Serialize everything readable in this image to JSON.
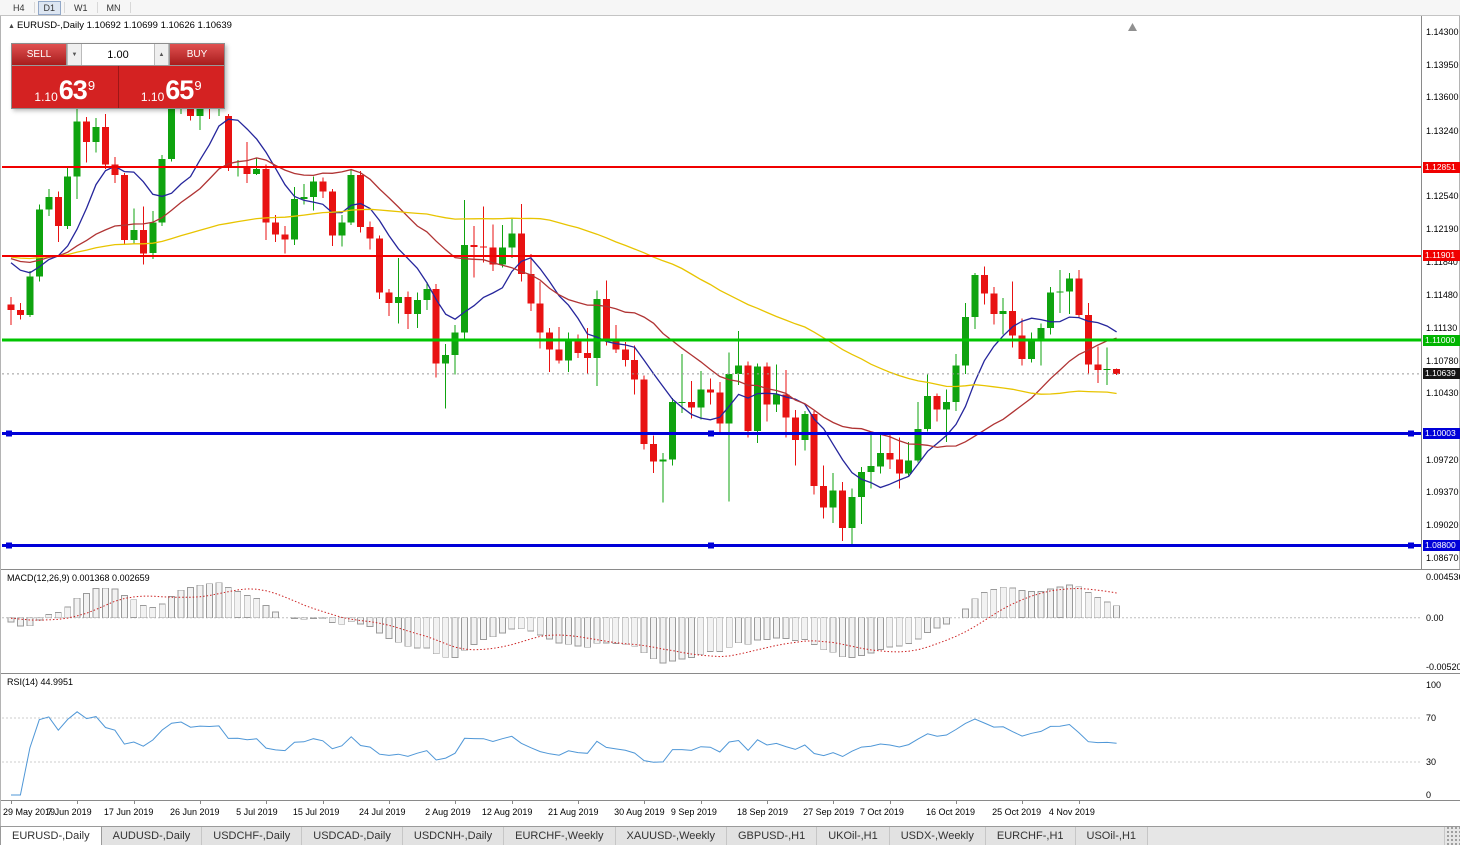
{
  "toolbar": {
    "timeframes": [
      {
        "label": "H4",
        "active": false
      },
      {
        "label": "D1",
        "active": true
      },
      {
        "label": "W1",
        "active": false
      },
      {
        "label": "MN",
        "active": false
      }
    ]
  },
  "chart_header": {
    "text": "EURUSD-,Daily  1.10692 1.10699 1.10626 1.10639"
  },
  "icons": {
    "spin_down": "▼",
    "spin_up": "▲",
    "symbol_marker": "▲"
  },
  "trade_panel": {
    "sell_label": "SELL",
    "buy_label": "BUY",
    "volume": "1.00",
    "bid_prefix": "1.10",
    "bid_big": "63",
    "bid_sup": "9",
    "ask_prefix": "1.10",
    "ask_big": "65",
    "ask_sup": "9"
  },
  "colors": {
    "up": "#0fa30f",
    "down": "#e81212",
    "line_red": "#f00000",
    "line_green": "#00c400",
    "line_blue": "#0000d8",
    "current_badge": "#151515",
    "macd_signal": "#cc2222",
    "macd_hist_stroke": "#9a9a9a",
    "macd_hist_fill": "#f2f2f2",
    "rsi_line": "#4f97d7"
  },
  "chart_data": {
    "type": "candlestick",
    "symbol": "EURUSD-,Daily",
    "current_price": 1.10639,
    "current_bar": {
      "open": 1.10692,
      "high": 1.10699,
      "low": 1.10626,
      "close": 1.10639
    },
    "candles": [
      [
        1.1138,
        1.1146,
        1.1116,
        1.1132
      ],
      [
        1.1132,
        1.114,
        1.1122,
        1.1127
      ],
      [
        1.1127,
        1.1174,
        1.1125,
        1.1168
      ],
      [
        1.1168,
        1.1245,
        1.1163,
        1.124
      ],
      [
        1.124,
        1.1262,
        1.1233,
        1.1253
      ],
      [
        1.1253,
        1.1259,
        1.1205,
        1.1222
      ],
      [
        1.1222,
        1.1286,
        1.1219,
        1.1275
      ],
      [
        1.1275,
        1.1348,
        1.1251,
        1.1334
      ],
      [
        1.1334,
        1.1339,
        1.129,
        1.1312
      ],
      [
        1.1312,
        1.1338,
        1.1301,
        1.1328
      ],
      [
        1.1328,
        1.1342,
        1.1283,
        1.1288
      ],
      [
        1.1288,
        1.1296,
        1.1268,
        1.1277
      ],
      [
        1.1277,
        1.1279,
        1.1202,
        1.1207
      ],
      [
        1.1207,
        1.1241,
        1.1203,
        1.1218
      ],
      [
        1.1218,
        1.1243,
        1.1181,
        1.1193
      ],
      [
        1.1193,
        1.1238,
        1.1187,
        1.1226
      ],
      [
        1.1226,
        1.1298,
        1.1222,
        1.1294
      ],
      [
        1.1294,
        1.1368,
        1.1291,
        1.1355
      ],
      [
        1.1355,
        1.1372,
        1.1342,
        1.1368
      ],
      [
        1.1368,
        1.1371,
        1.1335,
        1.134
      ],
      [
        1.134,
        1.1362,
        1.1325,
        1.135
      ],
      [
        1.135,
        1.136,
        1.1337,
        1.1348
      ],
      [
        1.1348,
        1.1365,
        1.134,
        1.1352
      ],
      [
        1.134,
        1.1342,
        1.1281,
        1.1285
      ],
      [
        1.1285,
        1.1293,
        1.1275,
        1.1286
      ],
      [
        1.1286,
        1.1312,
        1.1268,
        1.1278
      ],
      [
        1.1278,
        1.1295,
        1.1277,
        1.1283
      ],
      [
        1.1283,
        1.1288,
        1.1207,
        1.1226
      ],
      [
        1.1226,
        1.1234,
        1.1205,
        1.1213
      ],
      [
        1.1213,
        1.1222,
        1.1193,
        1.1208
      ],
      [
        1.1208,
        1.1264,
        1.1202,
        1.1251
      ],
      [
        1.1251,
        1.1267,
        1.1245,
        1.1253
      ],
      [
        1.1253,
        1.1275,
        1.1239,
        1.127
      ],
      [
        1.127,
        1.1274,
        1.1252,
        1.1259
      ],
      [
        1.1259,
        1.1262,
        1.1201,
        1.1212
      ],
      [
        1.1212,
        1.1234,
        1.12,
        1.1226
      ],
      [
        1.1226,
        1.1282,
        1.1223,
        1.1277
      ],
      [
        1.1277,
        1.1281,
        1.1215,
        1.1221
      ],
      [
        1.1221,
        1.1227,
        1.1197,
        1.1209
      ],
      [
        1.1209,
        1.1212,
        1.1144,
        1.1151
      ],
      [
        1.1151,
        1.1155,
        1.1126,
        1.114
      ],
      [
        1.114,
        1.1188,
        1.1118,
        1.1146
      ],
      [
        1.1146,
        1.1152,
        1.1112,
        1.1128
      ],
      [
        1.1128,
        1.1151,
        1.1113,
        1.1143
      ],
      [
        1.1143,
        1.1162,
        1.1132,
        1.1155
      ],
      [
        1.1155,
        1.116,
        1.106,
        1.1075
      ],
      [
        1.1075,
        1.1096,
        1.1027,
        1.1084
      ],
      [
        1.1084,
        1.1116,
        1.1063,
        1.1108
      ],
      [
        1.1108,
        1.125,
        1.1101,
        1.1202
      ],
      [
        1.1202,
        1.1222,
        1.1167,
        1.12
      ],
      [
        1.12,
        1.1243,
        1.1183,
        1.1199
      ],
      [
        1.1199,
        1.1224,
        1.1174,
        1.1181
      ],
      [
        1.1181,
        1.1223,
        1.1178,
        1.1199
      ],
      [
        1.1199,
        1.123,
        1.1188,
        1.1214
      ],
      [
        1.1214,
        1.1246,
        1.1163,
        1.1171
      ],
      [
        1.1171,
        1.1192,
        1.1131,
        1.1139
      ],
      [
        1.1139,
        1.1163,
        1.1091,
        1.1108
      ],
      [
        1.1108,
        1.1113,
        1.1066,
        1.109
      ],
      [
        1.109,
        1.1114,
        1.1075,
        1.1078
      ],
      [
        1.1078,
        1.1108,
        1.1066,
        1.11
      ],
      [
        1.11,
        1.1106,
        1.1081,
        1.1086
      ],
      [
        1.1086,
        1.1113,
        1.1064,
        1.1081
      ],
      [
        1.1081,
        1.1153,
        1.1051,
        1.1144
      ],
      [
        1.1144,
        1.1164,
        1.1094,
        1.1101
      ],
      [
        1.1101,
        1.1116,
        1.1086,
        1.109
      ],
      [
        1.109,
        1.1098,
        1.1072,
        1.1079
      ],
      [
        1.1079,
        1.1094,
        1.1042,
        1.1058
      ],
      [
        1.1058,
        1.1062,
        1.0983,
        1.0989
      ],
      [
        1.0989,
        1.0998,
        1.0958,
        1.097
      ],
      [
        1.097,
        1.0979,
        1.0926,
        1.0972
      ],
      [
        1.0972,
        1.1038,
        1.0966,
        1.1034
      ],
      [
        1.1034,
        1.1085,
        1.1022,
        1.1034
      ],
      [
        1.1034,
        1.1056,
        1.1016,
        1.1028
      ],
      [
        1.1028,
        1.1067,
        1.1015,
        1.1047
      ],
      [
        1.1047,
        1.1059,
        1.1031,
        1.1044
      ],
      [
        1.1044,
        1.1055,
        1.0999,
        1.1011
      ],
      [
        1.1011,
        1.1087,
        1.0927,
        1.1064
      ],
      [
        1.1064,
        1.111,
        1.1052,
        1.1073
      ],
      [
        1.1073,
        1.1077,
        1.0996,
        1.1003
      ],
      [
        1.1003,
        1.1075,
        1.099,
        1.1072
      ],
      [
        1.1072,
        1.1076,
        1.1013,
        1.1031
      ],
      [
        1.1031,
        1.1074,
        1.1023,
        1.1042
      ],
      [
        1.1042,
        1.1068,
        1.0996,
        1.1017
      ],
      [
        1.1017,
        1.1025,
        1.0966,
        1.0993
      ],
      [
        1.0993,
        1.1024,
        1.0982,
        1.1021
      ],
      [
        1.1021,
        1.1024,
        1.0935,
        1.0944
      ],
      [
        1.0944,
        1.0966,
        1.0909,
        1.0921
      ],
      [
        1.0921,
        1.0958,
        1.0904,
        1.0939
      ],
      [
        1.0939,
        1.0948,
        1.0885,
        1.0899
      ],
      [
        1.0899,
        1.0941,
        1.0879,
        1.0932
      ],
      [
        1.0932,
        1.0964,
        1.0903,
        1.0959
      ],
      [
        1.0959,
        1.0999,
        1.0941,
        1.0965
      ],
      [
        1.0965,
        1.0999,
        1.0957,
        1.0979
      ],
      [
        1.0979,
        1.1,
        1.0962,
        1.0972
      ],
      [
        1.0972,
        1.0996,
        1.0941,
        1.0957
      ],
      [
        1.0957,
        1.0991,
        1.0955,
        1.0971
      ],
      [
        1.0971,
        1.1034,
        1.0969,
        1.1005
      ],
      [
        1.1005,
        1.1063,
        1.1002,
        1.104
      ],
      [
        1.104,
        1.1043,
        1.1013,
        1.1026
      ],
      [
        1.1026,
        1.1047,
        1.0991,
        1.1034
      ],
      [
        1.1034,
        1.1085,
        1.1024,
        1.1073
      ],
      [
        1.1073,
        1.114,
        1.1064,
        1.1125
      ],
      [
        1.1125,
        1.1172,
        1.1112,
        1.117
      ],
      [
        1.117,
        1.1179,
        1.1138,
        1.115
      ],
      [
        1.115,
        1.1157,
        1.1117,
        1.1128
      ],
      [
        1.1128,
        1.1145,
        1.1106,
        1.1131
      ],
      [
        1.1131,
        1.1163,
        1.1092,
        1.1105
      ],
      [
        1.1105,
        1.1123,
        1.1073,
        1.108
      ],
      [
        1.108,
        1.1108,
        1.1076,
        1.1099
      ],
      [
        1.1099,
        1.1118,
        1.1073,
        1.1113
      ],
      [
        1.1113,
        1.1157,
        1.1106,
        1.1151
      ],
      [
        1.1151,
        1.1175,
        1.1129,
        1.1152
      ],
      [
        1.1152,
        1.1172,
        1.1128,
        1.1166
      ],
      [
        1.1166,
        1.1175,
        1.1124,
        1.1127
      ],
      [
        1.1127,
        1.114,
        1.1063,
        1.1074
      ],
      [
        1.1074,
        1.1093,
        1.1054,
        1.1068
      ],
      [
        1.1068,
        1.1092,
        1.1052,
        1.1069
      ],
      [
        1.10692,
        1.10699,
        1.10626,
        1.10639
      ]
    ],
    "x_labels": [
      {
        "i": 0,
        "t": "29 May 2019"
      },
      {
        "i": 7,
        "t": "7 Jun 2019"
      },
      {
        "i": 13,
        "t": "17 Jun 2019"
      },
      {
        "i": 20,
        "t": "26 Jun 2019"
      },
      {
        "i": 27,
        "t": "5 Jul 2019"
      },
      {
        "i": 33,
        "t": "15 Jul 2019"
      },
      {
        "i": 40,
        "t": "24 Jul 2019"
      },
      {
        "i": 47,
        "t": "2 Aug 2019"
      },
      {
        "i": 53,
        "t": "12 Aug 2019"
      },
      {
        "i": 60,
        "t": "21 Aug 2019"
      },
      {
        "i": 67,
        "t": "30 Aug 2019"
      },
      {
        "i": 73,
        "t": "9 Sep 2019"
      },
      {
        "i": 80,
        "t": "18 Sep 2019"
      },
      {
        "i": 87,
        "t": "27 Sep 2019"
      },
      {
        "i": 93,
        "t": "7 Oct 2019"
      },
      {
        "i": 100,
        "t": "16 Oct 2019"
      },
      {
        "i": 107,
        "t": "25 Oct 2019"
      },
      {
        "i": 113,
        "t": "4 Nov 2019"
      }
    ],
    "y_ticks": [
      {
        "t": "1.14300",
        "p": 1.143
      },
      {
        "t": "1.13950",
        "p": 1.1395
      },
      {
        "t": "1.13600",
        "p": 1.136
      },
      {
        "t": "1.13240",
        "p": 1.1324
      },
      {
        "t": "1.12540",
        "p": 1.1254
      },
      {
        "t": "1.12190",
        "p": 1.1219
      },
      {
        "t": "1.11840",
        "p": 1.1184
      },
      {
        "t": "1.11480",
        "p": 1.1148
      },
      {
        "t": "1.11130",
        "p": 1.1113
      },
      {
        "t": "1.10780",
        "p": 1.1078
      },
      {
        "t": "1.10430",
        "p": 1.1043
      },
      {
        "t": "1.09720",
        "p": 1.0972
      },
      {
        "t": "1.09370",
        "p": 1.0937
      },
      {
        "t": "1.09020",
        "p": 1.0902
      },
      {
        "t": "1.08670",
        "p": 1.0867
      }
    ],
    "price_badges": [
      {
        "t": "1.12851",
        "p": 1.12851,
        "bg": "#f00000"
      },
      {
        "t": "1.11901",
        "p": 1.11901,
        "bg": "#f00000"
      },
      {
        "t": "1.11000",
        "p": 1.11,
        "bg": "#00b400"
      },
      {
        "t": "1.10639",
        "p": 1.10639,
        "bg": "#151515"
      },
      {
        "t": "1.10003",
        "p": 1.10003,
        "bg": "#0000d8"
      },
      {
        "t": "1.08800",
        "p": 1.088,
        "bg": "#0000d8"
      }
    ],
    "hlines": [
      {
        "p": 1.12851,
        "color": "#f00000",
        "w": 2,
        "handles": false
      },
      {
        "p": 1.11901,
        "color": "#f00000",
        "w": 2,
        "handles": false
      },
      {
        "p": 1.11,
        "color": "#00c400",
        "w": 3,
        "handles": false
      },
      {
        "p": 1.10003,
        "color": "#0000d8",
        "w": 3,
        "handles": true
      },
      {
        "p": 1.088,
        "color": "#0000d8",
        "w": 3,
        "handles": true
      }
    ],
    "moving_averages": [
      {
        "period": 8,
        "color": "#26269c"
      },
      {
        "period": 21,
        "color": "#b03434"
      },
      {
        "period": 55,
        "color": "#e8c400"
      }
    ],
    "macd": {
      "label": "MACD(12,26,9) 0.001368 0.002659",
      "fast": 12,
      "slow": 26,
      "smoothing": 9,
      "axis_labels": [
        "0.004536",
        "0.00",
        "-0.00520"
      ],
      "scale_max": 0.005,
      "scale_min": -0.0058
    },
    "rsi": {
      "label": "RSI(14) 44.9951",
      "period": 14,
      "value": 44.9951,
      "axis_labels": [
        "100",
        "70",
        "30",
        "0"
      ],
      "levels": [
        70,
        30
      ]
    }
  },
  "tabs": [
    {
      "label": "EURUSD-,Daily",
      "active": true
    },
    {
      "label": "AUDUSD-,Daily",
      "active": false
    },
    {
      "label": "USDCHF-,Daily",
      "active": false
    },
    {
      "label": "USDCAD-,Daily",
      "active": false
    },
    {
      "label": "USDCNH-,Daily",
      "active": false
    },
    {
      "label": "EURCHF-,Weekly",
      "active": false
    },
    {
      "label": "XAUUSD-,Weekly",
      "active": false
    },
    {
      "label": "GBPUSD-,H1",
      "active": false
    },
    {
      "label": "UKOil-,H1",
      "active": false
    },
    {
      "label": "USDX-,Weekly",
      "active": false
    },
    {
      "label": "EURCHF-,H1",
      "active": false
    },
    {
      "label": "USOil-,H1",
      "active": false
    }
  ]
}
